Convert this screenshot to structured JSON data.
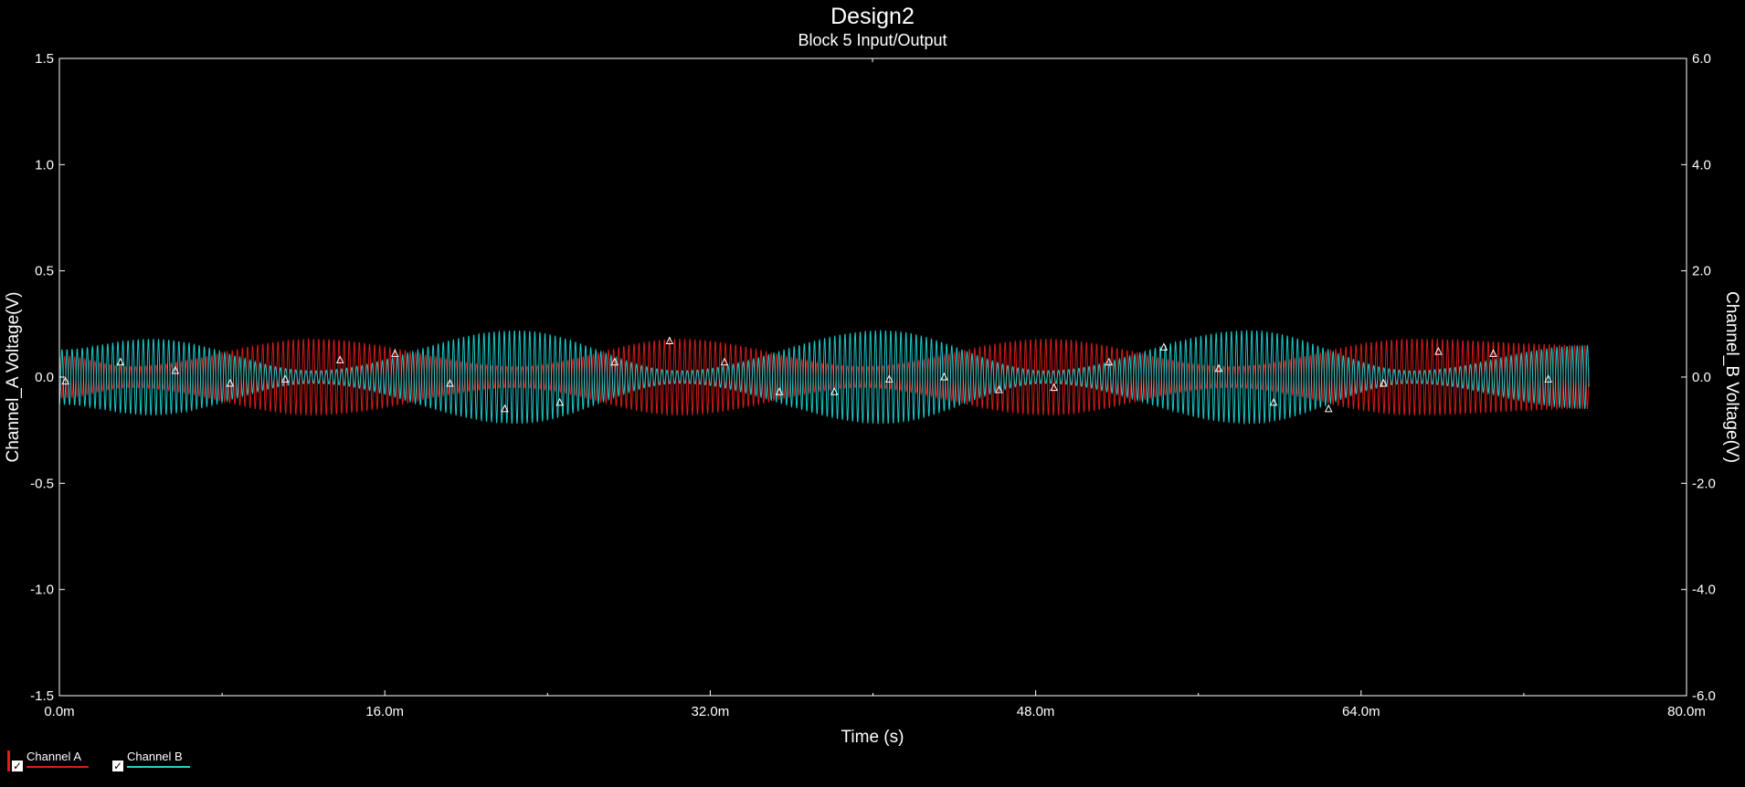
{
  "chart_data": {
    "type": "line",
    "title": "Design2",
    "subtitle": "Block 5 Input/Output",
    "xlabel": "Time (s)",
    "ylabel_left": "Channel_A Voltage(V)",
    "ylabel_right": "Channel_B Voltage(V)",
    "xlim": [
      0,
      0.08
    ],
    "ylim_left": [
      -1.5,
      1.5
    ],
    "ylim_right": [
      -6.0,
      6.0
    ],
    "x_ticks": [
      "0.0m",
      "16.0m",
      "32.0m",
      "48.0m",
      "64.0m",
      "80.0m"
    ],
    "y_ticks_left": [
      "1.5",
      "1.0",
      "0.5",
      "0.0",
      "-0.5",
      "-1.0",
      "-1.5"
    ],
    "y_ticks_right": [
      "6.0",
      "4.0",
      "2.0",
      "0.0",
      "-2.0",
      "-4.0",
      "-6.0"
    ],
    "grid": false,
    "legend_position": "bottom-left",
    "background_color": "#000000",
    "axis_color": "#ffffff",
    "series": [
      {
        "name": "Channel A",
        "axis": "left",
        "color": "#e01c1c",
        "checked": true,
        "x_end": 0.0752,
        "carrier_frequency_hz": 4000,
        "envelope_peaks": [
          {
            "x": 0.0,
            "amplitude": 0.1
          },
          {
            "x": 0.0035,
            "amplitude": 0.05
          },
          {
            "x": 0.0125,
            "amplitude": 0.18
          },
          {
            "x": 0.0225,
            "amplitude": 0.05
          },
          {
            "x": 0.0305,
            "amplitude": 0.18
          },
          {
            "x": 0.0395,
            "amplitude": 0.05
          },
          {
            "x": 0.0485,
            "amplitude": 0.18
          },
          {
            "x": 0.0575,
            "amplitude": 0.05
          },
          {
            "x": 0.0665,
            "amplitude": 0.18
          },
          {
            "x": 0.0752,
            "amplitude": 0.15
          }
        ]
      },
      {
        "name": "Channel B",
        "axis": "left",
        "color": "#1ed2d2",
        "checked": true,
        "x_end": 0.0752,
        "carrier_frequency_hz": 4000,
        "envelope_peaks": [
          {
            "x": 0.0,
            "amplitude": 0.13
          },
          {
            "x": 0.0045,
            "amplitude": 0.18
          },
          {
            "x": 0.0125,
            "amplitude": 0.03
          },
          {
            "x": 0.0225,
            "amplitude": 0.22
          },
          {
            "x": 0.0305,
            "amplitude": 0.03
          },
          {
            "x": 0.0405,
            "amplitude": 0.22
          },
          {
            "x": 0.0485,
            "amplitude": 0.03
          },
          {
            "x": 0.0585,
            "amplitude": 0.22
          },
          {
            "x": 0.0665,
            "amplitude": 0.03
          },
          {
            "x": 0.0752,
            "amplitude": 0.15
          }
        ]
      }
    ],
    "markers": {
      "color": "#ffffff",
      "shape": "triangle",
      "points": [
        {
          "x": 0.0003,
          "y": -0.02
        },
        {
          "x": 0.003,
          "y": 0.07
        },
        {
          "x": 0.0057,
          "y": 0.03
        },
        {
          "x": 0.0084,
          "y": -0.03
        },
        {
          "x": 0.0111,
          "y": -0.01
        },
        {
          "x": 0.0138,
          "y": 0.08
        },
        {
          "x": 0.0165,
          "y": 0.11
        },
        {
          "x": 0.0192,
          "y": -0.03
        },
        {
          "x": 0.0219,
          "y": -0.15
        },
        {
          "x": 0.0246,
          "y": -0.12
        },
        {
          "x": 0.0273,
          "y": 0.07
        },
        {
          "x": 0.03,
          "y": 0.17
        },
        {
          "x": 0.0327,
          "y": 0.07
        },
        {
          "x": 0.0354,
          "y": -0.07
        },
        {
          "x": 0.0381,
          "y": -0.07
        },
        {
          "x": 0.0408,
          "y": -0.01
        },
        {
          "x": 0.0435,
          "y": 0.0
        },
        {
          "x": 0.0462,
          "y": -0.06
        },
        {
          "x": 0.0489,
          "y": -0.05
        },
        {
          "x": 0.0516,
          "y": 0.07
        },
        {
          "x": 0.0543,
          "y": 0.14
        },
        {
          "x": 0.057,
          "y": 0.04
        },
        {
          "x": 0.0597,
          "y": -0.12
        },
        {
          "x": 0.0624,
          "y": -0.15
        },
        {
          "x": 0.0651,
          "y": -0.03
        },
        {
          "x": 0.0678,
          "y": 0.12
        },
        {
          "x": 0.0705,
          "y": 0.11
        },
        {
          "x": 0.0732,
          "y": -0.01
        }
      ]
    }
  }
}
